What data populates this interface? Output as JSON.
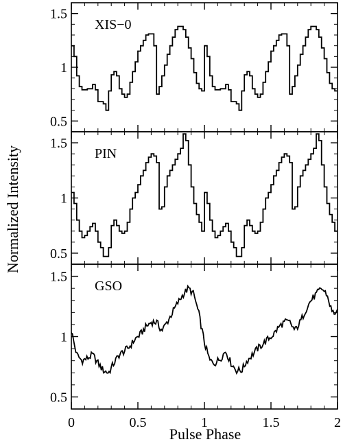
{
  "chart_data": [
    {
      "type": "line",
      "style": "step",
      "panel_label": "XIS−0",
      "ylim": [
        0.4,
        1.6
      ],
      "xlim": [
        0,
        2
      ],
      "yticks": [
        0.5,
        1,
        1.5
      ],
      "ytick_labels": [
        "0.5",
        "1",
        "1.5"
      ],
      "x": [
        0.0,
        0.02,
        0.04,
        0.06,
        0.08,
        0.1,
        0.12,
        0.14,
        0.16,
        0.18,
        0.2,
        0.22,
        0.24,
        0.26,
        0.28,
        0.3,
        0.32,
        0.34,
        0.36,
        0.38,
        0.4,
        0.42,
        0.44,
        0.46,
        0.48,
        0.5,
        0.52,
        0.54,
        0.56,
        0.58,
        0.6,
        0.62,
        0.64,
        0.66,
        0.68,
        0.7,
        0.72,
        0.74,
        0.76,
        0.78,
        0.8,
        0.82,
        0.84,
        0.86,
        0.88,
        0.9,
        0.92,
        0.94,
        0.96,
        0.98,
        1.0,
        1.02,
        1.04,
        1.06,
        1.08,
        1.1,
        1.12,
        1.14,
        1.16,
        1.18,
        1.2,
        1.22,
        1.24,
        1.26,
        1.28,
        1.3,
        1.32,
        1.34,
        1.36,
        1.38,
        1.4,
        1.42,
        1.44,
        1.46,
        1.48,
        1.5,
        1.52,
        1.54,
        1.56,
        1.58,
        1.6,
        1.62,
        1.64,
        1.66,
        1.68,
        1.7,
        1.72,
        1.74,
        1.76,
        1.78,
        1.8,
        1.82,
        1.84,
        1.86,
        1.88,
        1.9,
        1.92,
        1.94,
        1.96,
        1.98
      ],
      "y": [
        1.2,
        1.1,
        0.92,
        0.82,
        0.79,
        0.79,
        0.8,
        0.8,
        0.84,
        0.79,
        0.68,
        0.68,
        0.66,
        0.6,
        0.78,
        0.93,
        0.96,
        0.92,
        0.8,
        0.75,
        0.72,
        0.75,
        0.86,
        0.96,
        1.05,
        1.15,
        1.2,
        1.25,
        1.3,
        1.31,
        1.31,
        1.2,
        0.75,
        0.82,
        0.92,
        1.02,
        1.12,
        1.2,
        1.28,
        1.35,
        1.38,
        1.38,
        1.35,
        1.28,
        1.18,
        1.08,
        0.95,
        0.85,
        0.8,
        0.78,
        1.2,
        1.1,
        0.92,
        0.82,
        0.79,
        0.79,
        0.8,
        0.8,
        0.84,
        0.79,
        0.68,
        0.68,
        0.66,
        0.6,
        0.78,
        0.93,
        0.96,
        0.92,
        0.8,
        0.75,
        0.72,
        0.75,
        0.86,
        0.96,
        1.05,
        1.15,
        1.2,
        1.25,
        1.3,
        1.31,
        1.31,
        1.2,
        0.75,
        0.82,
        0.92,
        1.02,
        1.12,
        1.2,
        1.28,
        1.35,
        1.38,
        1.38,
        1.35,
        1.28,
        1.18,
        1.08,
        0.95,
        0.85,
        0.8,
        0.78
      ]
    },
    {
      "type": "line",
      "style": "step",
      "panel_label": "PIN",
      "ylim": [
        0.4,
        1.6
      ],
      "xlim": [
        0,
        2
      ],
      "yticks": [
        0.5,
        1,
        1.5
      ],
      "ytick_labels": [
        "0.5",
        "1",
        "1.5"
      ],
      "x": [
        0.0,
        0.02,
        0.04,
        0.06,
        0.08,
        0.1,
        0.12,
        0.14,
        0.16,
        0.18,
        0.2,
        0.22,
        0.24,
        0.26,
        0.28,
        0.3,
        0.32,
        0.34,
        0.36,
        0.38,
        0.4,
        0.42,
        0.44,
        0.46,
        0.48,
        0.5,
        0.52,
        0.54,
        0.56,
        0.58,
        0.6,
        0.62,
        0.64,
        0.66,
        0.68,
        0.7,
        0.72,
        0.74,
        0.76,
        0.78,
        0.8,
        0.82,
        0.84,
        0.86,
        0.88,
        0.9,
        0.92,
        0.94,
        0.96,
        0.98,
        1.0,
        1.02,
        1.04,
        1.06,
        1.08,
        1.1,
        1.12,
        1.14,
        1.16,
        1.18,
        1.2,
        1.22,
        1.24,
        1.26,
        1.28,
        1.3,
        1.32,
        1.34,
        1.36,
        1.38,
        1.4,
        1.42,
        1.44,
        1.46,
        1.48,
        1.5,
        1.52,
        1.54,
        1.56,
        1.58,
        1.6,
        1.62,
        1.64,
        1.66,
        1.68,
        1.7,
        1.72,
        1.74,
        1.76,
        1.78,
        1.8,
        1.82,
        1.84,
        1.86,
        1.88,
        1.9,
        1.92,
        1.94,
        1.96,
        1.98
      ],
      "y": [
        1.05,
        0.95,
        0.8,
        0.7,
        0.64,
        0.66,
        0.7,
        0.74,
        0.77,
        0.7,
        0.6,
        0.55,
        0.47,
        0.47,
        0.55,
        0.75,
        0.8,
        0.75,
        0.7,
        0.68,
        0.7,
        0.78,
        0.9,
        1.0,
        1.05,
        1.12,
        1.2,
        1.25,
        1.32,
        1.37,
        1.4,
        1.38,
        1.32,
        0.9,
        0.92,
        1.1,
        1.2,
        1.25,
        1.3,
        1.35,
        1.4,
        1.45,
        1.58,
        1.52,
        1.3,
        1.1,
        0.95,
        0.85,
        0.78,
        0.7,
        1.05,
        0.95,
        0.8,
        0.7,
        0.64,
        0.66,
        0.7,
        0.74,
        0.77,
        0.7,
        0.6,
        0.55,
        0.47,
        0.47,
        0.55,
        0.75,
        0.8,
        0.75,
        0.7,
        0.68,
        0.7,
        0.78,
        0.9,
        1.0,
        1.05,
        1.12,
        1.2,
        1.25,
        1.32,
        1.37,
        1.4,
        1.38,
        1.32,
        0.9,
        0.92,
        1.1,
        1.2,
        1.25,
        1.3,
        1.35,
        1.4,
        1.45,
        1.58,
        1.52,
        1.3,
        1.1,
        0.95,
        0.85,
        0.78,
        0.7
      ]
    },
    {
      "type": "line",
      "style": "noisy",
      "panel_label": "GSO",
      "ylim": [
        0.4,
        1.6
      ],
      "xlim": [
        0,
        2
      ],
      "xlabel": "Pulse Phase",
      "xticks": [
        0,
        0.5,
        1,
        1.5,
        2
      ],
      "xtick_labels": [
        "0",
        "0.5",
        "1",
        "1.5",
        "2"
      ],
      "yticks": [
        0.5,
        1,
        1.5
      ],
      "ytick_labels": [
        "0.5",
        "1",
        "1.5"
      ],
      "x": [
        0.0,
        0.04,
        0.08,
        0.12,
        0.16,
        0.2,
        0.24,
        0.28,
        0.32,
        0.36,
        0.4,
        0.44,
        0.48,
        0.52,
        0.56,
        0.6,
        0.64,
        0.68,
        0.72,
        0.76,
        0.8,
        0.84,
        0.88,
        0.92,
        0.96,
        1.0,
        1.04,
        1.08,
        1.12,
        1.16,
        1.2,
        1.24,
        1.28,
        1.32,
        1.36,
        1.4,
        1.44,
        1.48,
        1.52,
        1.56,
        1.6,
        1.64,
        1.68,
        1.72,
        1.76,
        1.8,
        1.84,
        1.88,
        1.92,
        1.96
      ],
      "y": [
        1.05,
        0.85,
        0.8,
        0.82,
        0.85,
        0.78,
        0.72,
        0.7,
        0.78,
        0.85,
        0.88,
        0.92,
        0.98,
        1.02,
        1.08,
        1.12,
        1.12,
        1.05,
        1.12,
        1.2,
        1.28,
        1.35,
        1.4,
        1.35,
        1.18,
        0.95,
        0.8,
        0.78,
        0.82,
        0.88,
        0.78,
        0.72,
        0.72,
        0.8,
        0.85,
        0.9,
        0.94,
        0.98,
        1.02,
        1.08,
        1.12,
        1.12,
        1.05,
        1.12,
        1.22,
        1.3,
        1.35,
        1.4,
        1.35,
        1.2
      ]
    }
  ],
  "ylabel": "Normalized Intensity",
  "xlabel": "Pulse Phase"
}
